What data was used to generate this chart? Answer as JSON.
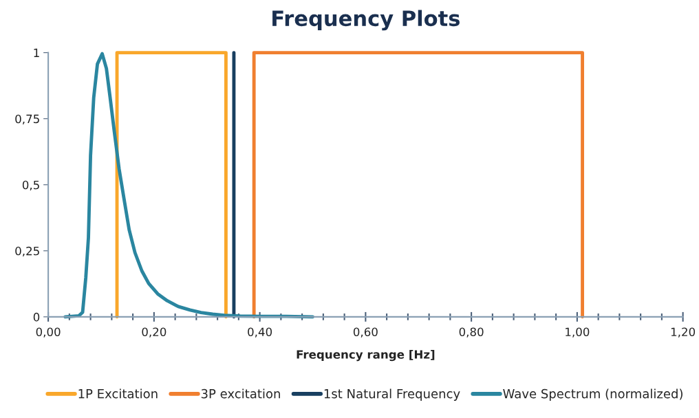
{
  "chart_data": {
    "type": "line",
    "title": "Frequency Plots",
    "xlabel": "Frequency range [Hz]",
    "xlim": [
      0,
      1.2
    ],
    "ylim": [
      0,
      1
    ],
    "xticks": [
      {
        "value": 0,
        "label": "0,00"
      },
      {
        "value": 0.04,
        "label": null
      },
      {
        "value": 0.08,
        "label": null
      },
      {
        "value": 0.12,
        "label": null
      },
      {
        "value": 0.16,
        "label": null
      },
      {
        "value": 0.2,
        "label": "0,20"
      },
      {
        "value": 0.24,
        "label": null
      },
      {
        "value": 0.28,
        "label": null
      },
      {
        "value": 0.32,
        "label": null
      },
      {
        "value": 0.36,
        "label": null
      },
      {
        "value": 0.4,
        "label": "0,40"
      },
      {
        "value": 0.44,
        "label": null
      },
      {
        "value": 0.48,
        "label": null
      },
      {
        "value": 0.52,
        "label": null
      },
      {
        "value": 0.56,
        "label": null
      },
      {
        "value": 0.6,
        "label": "0,60"
      },
      {
        "value": 0.64,
        "label": null
      },
      {
        "value": 0.68,
        "label": null
      },
      {
        "value": 0.72,
        "label": null
      },
      {
        "value": 0.76,
        "label": null
      },
      {
        "value": 0.8,
        "label": "0,80"
      },
      {
        "value": 0.84,
        "label": null
      },
      {
        "value": 0.88,
        "label": null
      },
      {
        "value": 0.92,
        "label": null
      },
      {
        "value": 0.96,
        "label": null
      },
      {
        "value": 1.0,
        "label": "1,00"
      },
      {
        "value": 1.04,
        "label": null
      },
      {
        "value": 1.08,
        "label": null
      },
      {
        "value": 1.12,
        "label": null
      },
      {
        "value": 1.16,
        "label": null
      },
      {
        "value": 1.2,
        "label": "1,20"
      }
    ],
    "yticks": [
      0,
      {
        "value": 0.25,
        "label": "0,25"
      },
      {
        "value": 0.5,
        "label": "0,5"
      },
      {
        "value": 0.75,
        "label": "0,75"
      },
      1
    ],
    "grid": false,
    "legend": "bottom",
    "marker": "none",
    "line_style": "solid",
    "series": [
      {
        "name": "1P Excitation",
        "color": "#f9a72b",
        "x": [
          0.13,
          0.13,
          0.336,
          0.336
        ],
        "values": [
          0,
          1,
          1,
          0
        ]
      },
      {
        "name": "3P excitation",
        "color": "#f07f2f",
        "x": [
          0.389,
          0.389,
          1.01,
          1.01
        ],
        "values": [
          0,
          1,
          1,
          0
        ]
      },
      {
        "name": "1st Natural Frequency",
        "color": "#183f60",
        "x": [
          0.351,
          0.351
        ],
        "values": [
          0,
          1
        ]
      },
      {
        "name": "Wave Spectrum (normalized)",
        "color": "#2a86a0",
        "x": [
          0.032,
          0.058,
          0.065,
          0.071,
          0.076,
          0.08,
          0.086,
          0.093,
          0.102,
          0.11,
          0.117,
          0.125,
          0.134,
          0.143,
          0.153,
          0.164,
          0.177,
          0.19,
          0.207,
          0.225,
          0.246,
          0.268,
          0.289,
          0.311,
          0.333,
          0.363,
          0.4,
          0.45,
          0.5
        ],
        "values": [
          0,
          0.004,
          0.017,
          0.148,
          0.3,
          0.61,
          0.83,
          0.957,
          0.996,
          0.94,
          0.83,
          0.7,
          0.56,
          0.45,
          0.33,
          0.243,
          0.174,
          0.126,
          0.087,
          0.061,
          0.039,
          0.026,
          0.016,
          0.01,
          0.006,
          0.003,
          0.002,
          0.002,
          0
        ]
      }
    ]
  }
}
